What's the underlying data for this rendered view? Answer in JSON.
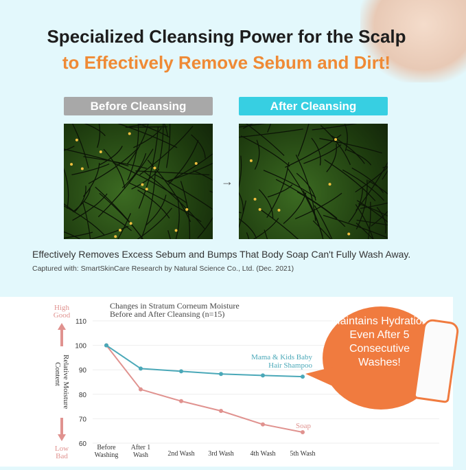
{
  "header": {
    "title_line1": "Specialized Cleansing Power for the Scalp",
    "title_line2": "to Effectively Remove Sebum and Dirt!"
  },
  "comparison": {
    "before_label": "Before Cleansing",
    "after_label": "After Cleansing",
    "arrow_icon": "arrow-right-icon"
  },
  "captions": {
    "main": "Effectively Removes Excess Sebum and Bumps That Body Soap Can't Fully Wash Away.",
    "credit": "Captured with: SmartSkinCare    Research by Natural Science Co., Ltd. (Dec. 2021)"
  },
  "callout": {
    "text": "Maintains Hydration Even After 5 Consecutive Washes!",
    "color": "#f07b3f"
  },
  "chart_data": {
    "type": "line",
    "title": "Changes in Stratum Corneum Moisture Before and After Cleansing (n=15)",
    "title_line1": "Changes in Stratum Corneum Moisture",
    "title_line2": "Before and After Cleansing (n=15)",
    "ylabel_line1": "Relative Moisture",
    "ylabel_line2": "Content",
    "y_high_line1": "High",
    "y_high_line2": "Good",
    "y_low_line1": "Low",
    "y_low_line2": "Bad",
    "ylim": [
      60,
      110
    ],
    "yticks": [
      110,
      100,
      90,
      80,
      70,
      60
    ],
    "categories": [
      "Before Washing",
      "After 1 Wash",
      "2nd Wash",
      "3rd Wash",
      "4th Wash",
      "5th Wash"
    ],
    "grid": true,
    "series": [
      {
        "name": "Mama & Kids Baby Hair Shampoo",
        "name_line1": "Mama & Kids Baby",
        "name_line2": "Hair Shampoo",
        "color": "#4aa8b8",
        "values": [
          100,
          90.5,
          89.4,
          88.3,
          87.7,
          87.2
        ]
      },
      {
        "name": "Soap",
        "name_line1": "Soap",
        "name_line2": "",
        "color": "#e0928f",
        "values": [
          100,
          82,
          77.2,
          73.2,
          67.7,
          64.5
        ]
      }
    ]
  }
}
